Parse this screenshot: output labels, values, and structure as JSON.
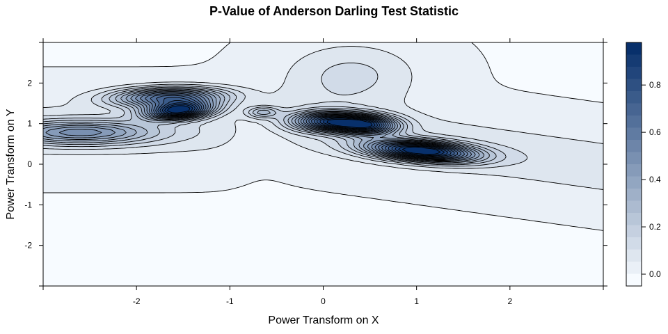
{
  "chart_data": {
    "type": "heatmap",
    "subtype": "filled-contour",
    "title": "P-Value of Anderson Darling Test Statistic",
    "xlabel": "Power Transform on X",
    "ylabel": "Power Transform on Y",
    "xlim": [
      -3,
      3
    ],
    "ylim": [
      -3,
      3
    ],
    "x_ticks": [
      -2,
      -1,
      0,
      1,
      2
    ],
    "y_ticks": [
      -2,
      -1,
      0,
      1,
      2
    ],
    "colorbar": {
      "range": [
        -0.05,
        0.98
      ],
      "ticks": [
        0.0,
        0.2,
        0.4,
        0.6,
        0.8
      ],
      "levels": 20,
      "colors": [
        "#F7FBFF",
        "#08306B"
      ]
    },
    "peaks": [
      {
        "x": 1.05,
        "y": 0.33,
        "value": 0.97
      },
      {
        "x": 0.1,
        "y": 1.05,
        "value": 0.8
      },
      {
        "x": 0.5,
        "y": 0.95,
        "value": 0.62
      },
      {
        "x": -1.55,
        "y": 1.32,
        "value": 0.9
      },
      {
        "x": -1.65,
        "y": 1.65,
        "value": 0.65
      },
      {
        "x": -2.6,
        "y": 0.78,
        "value": 0.42
      },
      {
        "x": -0.65,
        "y": 1.28,
        "value": 0.25
      },
      {
        "x": 0.3,
        "y": 2.2,
        "value": 0.12
      }
    ],
    "grid": false,
    "legend": "right colorbar"
  }
}
